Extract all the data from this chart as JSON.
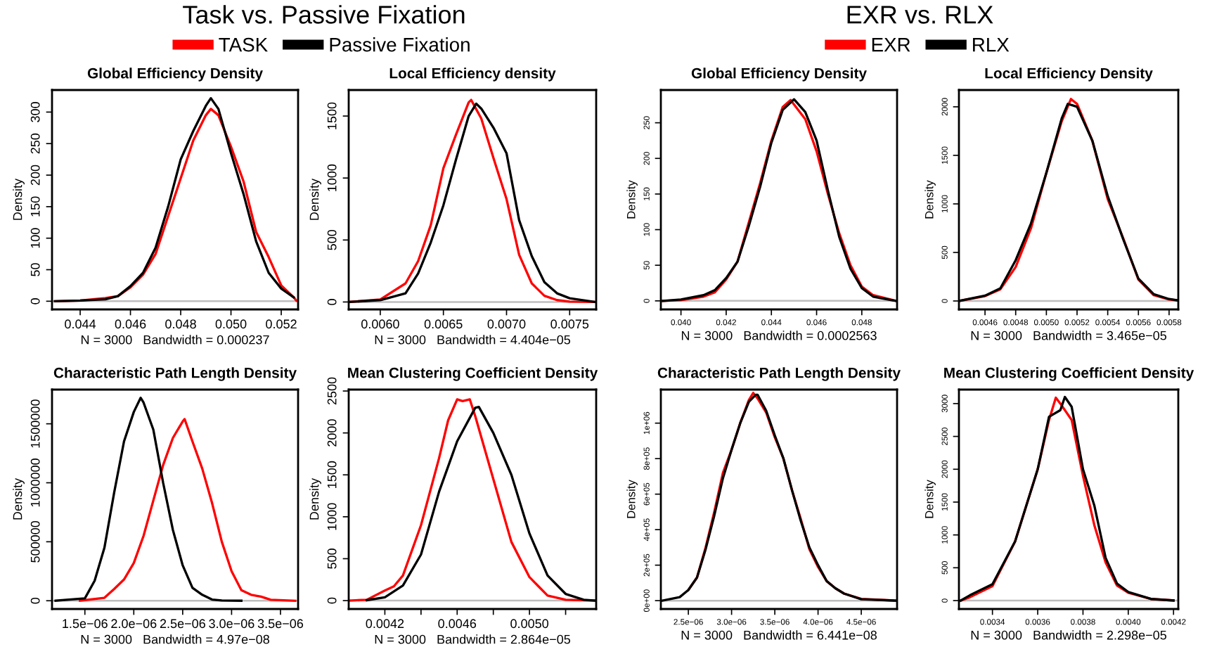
{
  "chart_data": [
    {
      "type": "line",
      "title": "Global Efficiency Density",
      "xlabel": "N = 3000   Bandwidth = 0.000237",
      "ylabel": "Density",
      "annotations": [
        "Task vs. Passive Fixation"
      ],
      "legend": "top",
      "xlim": [
        0.04288,
        0.05267
      ],
      "ylim": [
        -13,
        335
      ],
      "xticks": [
        0.044,
        0.046,
        0.048,
        {
          "value": 0.05,
          "label": "0.050"
        },
        0.052
      ],
      "yticks": [
        0,
        50,
        100,
        150,
        200,
        250,
        300
      ],
      "ref_lines": [
        {
          "axis": "y",
          "value": 0,
          "color": "#bebebe"
        }
      ],
      "series": [
        {
          "name": "TASK",
          "color": "#ff0000",
          "x": [
            0.043,
            0.044,
            0.045,
            0.0455,
            0.046,
            0.0465,
            0.047,
            0.0475,
            0.048,
            0.0485,
            0.049,
            0.0492,
            0.0495,
            0.05,
            0.0505,
            0.051,
            0.0515,
            0.052,
            0.0525,
            0.0526
          ],
          "values": [
            0,
            1,
            5,
            8,
            22,
            42,
            75,
            135,
            195,
            255,
            295,
            305,
            295,
            245,
            190,
            110,
            70,
            25,
            6,
            1
          ]
        },
        {
          "name": "Passive Fixation",
          "color": "#000000",
          "x": [
            0.043,
            0.044,
            0.045,
            0.0455,
            0.046,
            0.0465,
            0.047,
            0.0475,
            0.048,
            0.0485,
            0.049,
            0.0492,
            0.0495,
            0.05,
            0.0505,
            0.051,
            0.0515,
            0.052,
            0.0525
          ],
          "values": [
            0,
            1,
            3,
            8,
            24,
            45,
            85,
            150,
            225,
            270,
            310,
            322,
            305,
            235,
            170,
            95,
            45,
            20,
            6
          ]
        }
      ]
    },
    {
      "type": "line",
      "title": "Local Efficiency density",
      "xlabel": "N = 3000   Bandwidth = 4.404e−05",
      "ylabel": "Density",
      "xlim": [
        0.00575,
        0.00771
      ],
      "ylim": [
        -60,
        1710
      ],
      "xticks": [
        {
          "value": 0.006,
          "label": "0.0060"
        },
        {
          "value": 0.0065,
          "label": "0.0065"
        },
        {
          "value": 0.007,
          "label": "0.0070"
        },
        {
          "value": 0.0075,
          "label": "0.0075"
        }
      ],
      "yticks": [
        0,
        500,
        1000,
        1500
      ],
      "ref_lines": [
        {
          "axis": "y",
          "value": 0,
          "color": "#bebebe"
        }
      ],
      "series": [
        {
          "color": "#ff0000",
          "x": [
            0.00575,
            0.006,
            0.0062,
            0.0063,
            0.0064,
            0.0065,
            0.0066,
            0.0067,
            0.00672,
            0.0068,
            0.0069,
            0.007,
            0.0071,
            0.0072,
            0.0073,
            0.0074,
            0.0075,
            0.0077
          ],
          "values": [
            0,
            20,
            150,
            330,
            620,
            1080,
            1350,
            1610,
            1630,
            1480,
            1150,
            830,
            380,
            150,
            50,
            15,
            3,
            0
          ]
        },
        {
          "color": "#000000",
          "x": [
            0.00575,
            0.006,
            0.0062,
            0.0063,
            0.0064,
            0.0065,
            0.0066,
            0.0067,
            0.00676,
            0.0068,
            0.0069,
            0.007,
            0.0071,
            0.0072,
            0.0073,
            0.0074,
            0.0075,
            0.0077
          ],
          "values": [
            0,
            15,
            70,
            230,
            480,
            780,
            1150,
            1500,
            1600,
            1560,
            1400,
            1200,
            660,
            370,
            160,
            70,
            30,
            0
          ]
        }
      ]
    },
    {
      "type": "line",
      "title": "Characteristic Path Length Density",
      "xlabel": "N = 3000   Bandwidth = 4.97e−08",
      "ylabel": "Density",
      "xlim": [
        1.164e-06,
        3.68e-06
      ],
      "ylim": [
        -70000,
        1790000
      ],
      "xticks": [
        {
          "value": 1.5e-06,
          "label": "1.5e−06"
        },
        {
          "value": 2e-06,
          "label": "2.0e−06"
        },
        {
          "value": 2.5e-06,
          "label": "2.5e−06"
        },
        {
          "value": 3e-06,
          "label": "3.0e−06"
        },
        {
          "value": 3.5e-06,
          "label": "3.5e−06"
        }
      ],
      "yticks": [
        0,
        500000,
        1000000,
        1500000
      ],
      "ref_lines": [
        {
          "axis": "y",
          "value": 0,
          "color": "#bebebe"
        }
      ],
      "series": [
        {
          "color": "#ff0000",
          "x": [
            1.45e-06,
            1.7e-06,
            1.8e-06,
            1.9e-06,
            2e-06,
            2.1e-06,
            2.2e-06,
            2.3e-06,
            2.4e-06,
            2.5e-06,
            2.52e-06,
            2.6e-06,
            2.7e-06,
            2.8e-06,
            2.9e-06,
            3e-06,
            3.1e-06,
            3.2e-06,
            3.3e-06,
            3.4e-06,
            3.65e-06
          ],
          "values": [
            0,
            25000,
            100000,
            180000,
            320000,
            550000,
            850000,
            1150000,
            1380000,
            1520000,
            1540000,
            1350000,
            1120000,
            830000,
            500000,
            250000,
            90000,
            50000,
            35000,
            8000,
            0
          ]
        },
        {
          "color": "#000000",
          "x": [
            1.2e-06,
            1.5e-06,
            1.6e-06,
            1.7e-06,
            1.8e-06,
            1.9e-06,
            2e-06,
            2.07e-06,
            2.1e-06,
            2.2e-06,
            2.3e-06,
            2.4e-06,
            2.5e-06,
            2.6e-06,
            2.7e-06,
            2.8e-06,
            2.9e-06,
            3.1e-06
          ],
          "values": [
            0,
            20000,
            170000,
            450000,
            920000,
            1350000,
            1600000,
            1720000,
            1680000,
            1450000,
            1000000,
            600000,
            300000,
            110000,
            50000,
            10000,
            2000,
            0
          ]
        }
      ]
    },
    {
      "type": "line",
      "title": "Mean Clustering Coefficient Density",
      "xlabel": "N = 3000   Bandwidth = 2.864e−05",
      "ylabel": "Density",
      "xlim": [
        0.004,
        0.005369
      ],
      "ylim": [
        -100,
        2517
      ],
      "xticks": [
        {
          "value": 0.0042,
          "label": "0.0042"
        },
        {
          "value": 0.0044,
          "label": null
        },
        {
          "value": 0.0046,
          "label": "0.0046"
        },
        {
          "value": 0.0048,
          "label": null
        },
        {
          "value": 0.005,
          "label": "0.0050"
        },
        {
          "value": 0.0052,
          "label": null
        }
      ],
      "yticks": [
        0,
        500,
        1000,
        1500,
        2000,
        2500
      ],
      "ref_lines": [
        {
          "axis": "y",
          "value": 0,
          "color": "#bebebe"
        }
      ],
      "series": [
        {
          "color": "#ff0000",
          "x": [
            0.004,
            0.0041,
            0.0042,
            0.00425,
            0.0043,
            0.0044,
            0.0045,
            0.00455,
            0.0046,
            0.00463,
            0.00467,
            0.0047,
            0.0048,
            0.0049,
            0.005,
            0.0051,
            0.0052,
            0.00536
          ],
          "values": [
            0,
            10,
            120,
            170,
            300,
            900,
            1700,
            2150,
            2400,
            2380,
            2400,
            2200,
            1450,
            700,
            280,
            60,
            10,
            0
          ]
        },
        {
          "color": "#000000",
          "x": [
            0.0041,
            0.0042,
            0.0043,
            0.0044,
            0.0045,
            0.00455,
            0.0046,
            0.0047,
            0.00472,
            0.0048,
            0.0049,
            0.005,
            0.0051,
            0.0052,
            0.0053,
            0.00536
          ],
          "values": [
            5,
            40,
            180,
            550,
            1300,
            1600,
            1900,
            2300,
            2310,
            2000,
            1500,
            800,
            300,
            80,
            10,
            0
          ]
        }
      ]
    },
    {
      "type": "line",
      "title": "Global Efficiency Density",
      "xlabel": "N = 3000   Bandwidth = 0.0002563",
      "ylabel": "Density",
      "annotations": [
        "EXR vs. RLX"
      ],
      "legend": "top",
      "xlim": [
        0.03911,
        0.04956
      ],
      "ylim": [
        -12,
        296
      ],
      "xticks": [
        {
          "value": 0.04,
          "label": "0.040"
        },
        {
          "value": 0.042,
          "label": "0.042"
        },
        {
          "value": 0.044,
          "label": "0.044"
        },
        {
          "value": 0.046,
          "label": "0.046"
        },
        {
          "value": 0.048,
          "label": "0.048"
        }
      ],
      "yticks": [
        0,
        50,
        100,
        150,
        200,
        250
      ],
      "ref_lines": [
        {
          "axis": "y",
          "value": 0,
          "color": "#bebebe"
        }
      ],
      "series": [
        {
          "name": "EXR",
          "color": "#ff0000",
          "x": [
            0.0392,
            0.04,
            0.041,
            0.0415,
            0.042,
            0.0425,
            0.043,
            0.0435,
            0.044,
            0.0445,
            0.04485,
            0.0455,
            0.046,
            0.0465,
            0.047,
            0.0475,
            0.048,
            0.0485,
            0.0495
          ],
          "values": [
            0,
            1,
            6,
            12,
            30,
            55,
            110,
            165,
            225,
            272,
            282,
            255,
            210,
            150,
            95,
            50,
            20,
            8,
            0
          ]
        },
        {
          "name": "RLX",
          "color": "#000000",
          "x": [
            0.0392,
            0.04,
            0.041,
            0.0415,
            0.042,
            0.0425,
            0.043,
            0.0435,
            0.044,
            0.0445,
            0.045,
            0.0455,
            0.046,
            0.0465,
            0.047,
            0.0475,
            0.048,
            0.0485,
            0.0495
          ],
          "values": [
            0,
            2,
            8,
            15,
            32,
            55,
            105,
            160,
            222,
            268,
            283,
            265,
            225,
            155,
            90,
            45,
            18,
            6,
            0
          ]
        }
      ]
    },
    {
      "type": "line",
      "title": "Local Efficiency Density",
      "xlabel": "N = 3000   Bandwidth = 3.465e−05",
      "ylabel": "Density",
      "xlim": [
        0.00443,
        0.00586
      ],
      "ylim": [
        -87,
        2173
      ],
      "xticks": [
        {
          "value": 0.0046,
          "label": "0.0046"
        },
        {
          "value": 0.0048,
          "label": "0.0048"
        },
        {
          "value": 0.005,
          "label": "0.0050"
        },
        {
          "value": 0.0052,
          "label": "0.0052"
        },
        {
          "value": 0.0054,
          "label": "0.0054"
        },
        {
          "value": 0.0056,
          "label": "0.0056"
        },
        {
          "value": 0.0058,
          "label": "0.0058"
        }
      ],
      "yticks": [
        0,
        500,
        1000,
        1500,
        2000
      ],
      "ref_lines": [
        {
          "axis": "y",
          "value": 0,
          "color": "#bebebe"
        }
      ],
      "series": [
        {
          "color": "#ff0000",
          "x": [
            0.00443,
            0.0046,
            0.0047,
            0.0048,
            0.0049,
            0.005,
            0.0051,
            0.00516,
            0.0052,
            0.0053,
            0.0054,
            0.0055,
            0.0056,
            0.0057,
            0.0058,
            0.00586
          ],
          "values": [
            0,
            50,
            120,
            350,
            750,
            1320,
            1850,
            2080,
            2030,
            1650,
            1050,
            650,
            220,
            60,
            15,
            5
          ]
        },
        {
          "color": "#000000",
          "x": [
            0.00443,
            0.0046,
            0.0047,
            0.0048,
            0.0049,
            0.005,
            0.0051,
            0.00514,
            0.0052,
            0.0053,
            0.0054,
            0.0055,
            0.0056,
            0.0057,
            0.0058,
            0.00586
          ],
          "values": [
            0,
            55,
            130,
            420,
            800,
            1320,
            1880,
            2030,
            2000,
            1650,
            1080,
            640,
            230,
            70,
            20,
            5
          ]
        }
      ]
    },
    {
      "type": "line",
      "title": "Characteristic Path Length Density",
      "xlabel": "N = 3000   Bandwidth = 6.441e−08",
      "ylabel": "Density",
      "xlim": [
        2.182e-06,
        4.914e-06
      ],
      "ylim": [
        -47000,
        1189000
      ],
      "xticks": [
        {
          "value": 2.5e-06,
          "label": "2.5e−06"
        },
        {
          "value": 3e-06,
          "label": "3.0e−06"
        },
        {
          "value": 3.5e-06,
          "label": "3.5e−06"
        },
        {
          "value": 4e-06,
          "label": "4.0e−06"
        },
        {
          "value": 4.5e-06,
          "label": "4.5e−06"
        }
      ],
      "yticks": [
        {
          "value": 0,
          "label": "0e+00"
        },
        {
          "value": 200000,
          "label": "2e+05"
        },
        {
          "value": 400000,
          "label": "4e+05"
        },
        {
          "value": 600000,
          "label": "6e+05"
        },
        {
          "value": 800000,
          "label": "8e+05"
        },
        {
          "value": 1000000,
          "label": "1e+06"
        }
      ],
      "ref_lines": [
        {
          "axis": "y",
          "value": 0,
          "color": "#bebebe"
        }
      ],
      "series": [
        {
          "color": "#ff0000",
          "x": [
            2.5e-06,
            2.6e-06,
            2.7e-06,
            2.8e-06,
            2.9e-06,
            3e-06,
            3.1e-06,
            3.2e-06,
            3.25e-06,
            3.3e-06,
            3.4e-06,
            3.5e-06,
            3.6e-06,
            3.7e-06,
            3.8e-06,
            3.9e-06,
            4e-06,
            4.1e-06,
            4.2e-06,
            4.3e-06,
            4.5e-06,
            4.9e-06
          ],
          "values": [
            60000,
            130000,
            300000,
            500000,
            720000,
            850000,
            1000000,
            1130000,
            1170000,
            1140000,
            1060000,
            920000,
            800000,
            620000,
            460000,
            290000,
            190000,
            110000,
            70000,
            40000,
            10000,
            0
          ]
        },
        {
          "color": "#000000",
          "x": [
            2.2e-06,
            2.4e-06,
            2.5e-06,
            2.6e-06,
            2.7e-06,
            2.8e-06,
            2.9e-06,
            3e-06,
            3.1e-06,
            3.2e-06,
            3.28e-06,
            3.3e-06,
            3.4e-06,
            3.5e-06,
            3.6e-06,
            3.7e-06,
            3.8e-06,
            3.9e-06,
            4e-06,
            4.1e-06,
            4.2e-06,
            4.3e-06,
            4.5e-06,
            4.9e-06
          ],
          "values": [
            0,
            20000,
            60000,
            130000,
            290000,
            480000,
            690000,
            850000,
            1000000,
            1120000,
            1160000,
            1160000,
            1070000,
            930000,
            800000,
            620000,
            450000,
            300000,
            200000,
            110000,
            70000,
            40000,
            8000,
            0
          ]
        }
      ]
    },
    {
      "type": "line",
      "title": "Mean Clustering Coefficient Density",
      "xlabel": "N = 3000   Bandwidth = 2.298e−05",
      "ylabel": "Density",
      "xlim": [
        0.003252,
        0.004221
      ],
      "ylim": [
        -128,
        3213
      ],
      "xticks": [
        {
          "value": 0.0034,
          "label": "0.0034"
        },
        {
          "value": 0.0036,
          "label": "0.0036"
        },
        {
          "value": 0.0038,
          "label": "0.0038"
        },
        {
          "value": 0.004,
          "label": "0.0040"
        },
        {
          "value": 0.0042,
          "label": "0.0042"
        }
      ],
      "yticks": [
        0,
        500,
        1000,
        1500,
        2000,
        2500,
        3000
      ],
      "ref_lines": [
        {
          "axis": "y",
          "value": 0,
          "color": "#bebebe"
        }
      ],
      "series": [
        {
          "color": "#ff0000",
          "x": [
            0.00326,
            0.0033,
            0.0034,
            0.0035,
            0.0036,
            0.00365,
            0.00368,
            0.0037,
            0.00375,
            0.0038,
            0.00385,
            0.0039,
            0.00395,
            0.004,
            0.0041,
            0.0042
          ],
          "values": [
            0,
            50,
            220,
            900,
            2000,
            2750,
            3090,
            3000,
            2750,
            1900,
            1150,
            580,
            230,
            120,
            25,
            2
          ]
        },
        {
          "color": "#000000",
          "x": [
            0.00326,
            0.0033,
            0.0034,
            0.0035,
            0.0036,
            0.00365,
            0.0037,
            0.00372,
            0.00375,
            0.0038,
            0.00385,
            0.0039,
            0.00395,
            0.004,
            0.0041,
            0.0042
          ],
          "values": [
            0,
            80,
            250,
            900,
            2000,
            2800,
            2900,
            3100,
            2950,
            2000,
            1450,
            650,
            260,
            130,
            25,
            2
          ]
        }
      ]
    }
  ]
}
